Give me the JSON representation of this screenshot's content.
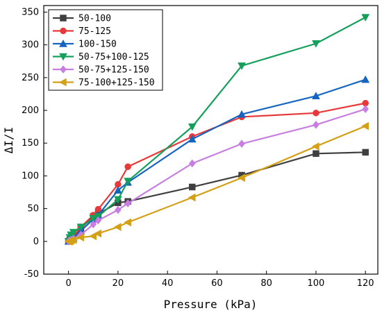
{
  "chart_data": {
    "type": "line",
    "xlabel": "Pressure (kPa)",
    "ylabel": "ΔI/I",
    "xlim": [
      -10,
      125
    ],
    "ylim": [
      -50,
      360
    ],
    "xticks": [
      0,
      20,
      40,
      60,
      80,
      100,
      120
    ],
    "yticks": [
      -50,
      0,
      50,
      100,
      150,
      200,
      250,
      300,
      350
    ],
    "grid": false,
    "legend_position": "top-left",
    "series": [
      {
        "name": "50-100",
        "color": "#3f3f3f",
        "marker": "square",
        "x": [
          0,
          0.5,
          1,
          2,
          5,
          10,
          12,
          20,
          24,
          50,
          70,
          100,
          120
        ],
        "y": [
          0,
          2,
          4,
          6,
          20,
          38,
          42,
          59,
          61,
          83,
          101,
          134,
          136
        ]
      },
      {
        "name": "75-125",
        "color": "#e8393a",
        "marker": "circle",
        "x": [
          0,
          0.5,
          1,
          2,
          5,
          10,
          12,
          20,
          24,
          50,
          70,
          100,
          120
        ],
        "y": [
          0,
          3,
          5,
          8,
          22,
          40,
          49,
          87,
          114,
          160,
          190,
          196,
          211
        ]
      },
      {
        "name": "100-150",
        "color": "#1565c0",
        "marker": "triangle-up",
        "x": [
          0,
          0.5,
          1,
          2,
          5,
          10,
          12,
          20,
          24,
          50,
          70,
          100,
          120
        ],
        "y": [
          0,
          2,
          3,
          5,
          16,
          34,
          40,
          78,
          90,
          156,
          194,
          222,
          247
        ]
      },
      {
        "name": "50-75+100-125",
        "color": "#14a05a",
        "marker": "triangle-down",
        "x": [
          0,
          0.5,
          1,
          2,
          5,
          10,
          12,
          20,
          24,
          50,
          70,
          100,
          120
        ],
        "y": [
          0,
          6,
          10,
          14,
          22,
          35,
          38,
          64,
          92,
          175,
          268,
          302,
          342
        ]
      },
      {
        "name": "50-75+125-150",
        "color": "#c77ee0",
        "marker": "diamond",
        "x": [
          0,
          0.5,
          1,
          2,
          5,
          10,
          12,
          20,
          24,
          50,
          70,
          100,
          120
        ],
        "y": [
          0,
          1,
          2,
          4,
          10,
          26,
          32,
          48,
          58,
          119,
          149,
          178,
          202
        ]
      },
      {
        "name": "75-100+125-150",
        "color": "#d4a017",
        "marker": "triangle-left",
        "x": [
          0,
          0.5,
          1,
          2,
          5,
          10,
          12,
          20,
          24,
          50,
          70,
          100,
          120
        ],
        "y": [
          0,
          0,
          1,
          2,
          6,
          8,
          12,
          22,
          29,
          67,
          97,
          145,
          176
        ]
      }
    ]
  }
}
